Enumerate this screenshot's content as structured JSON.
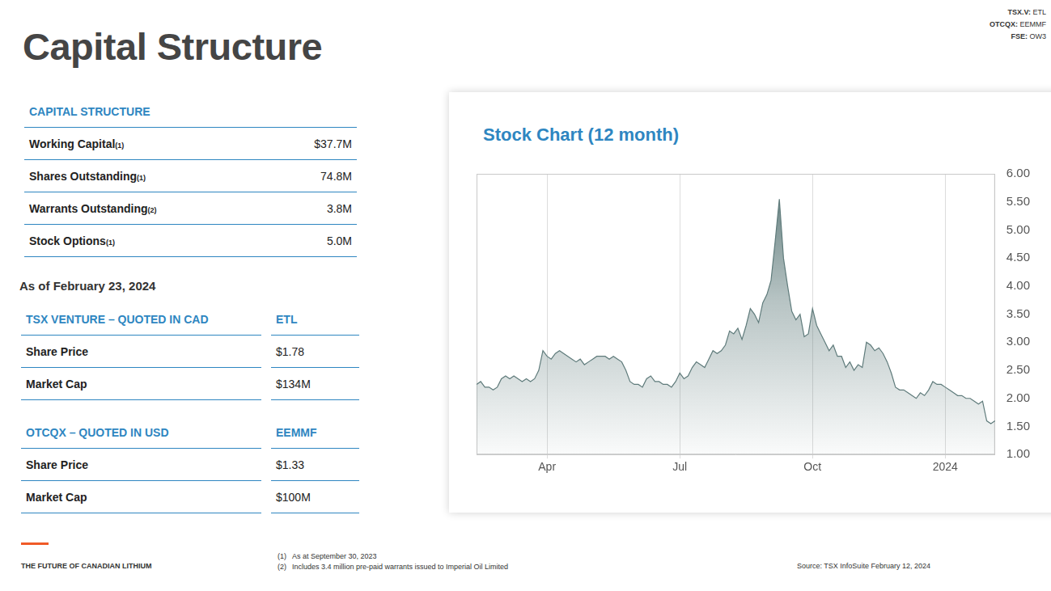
{
  "header": {
    "title": "Capital Structure",
    "tickers": [
      {
        "label": "TSX.V:",
        "value": "ETL"
      },
      {
        "label": "OTCQX:",
        "value": "EEMMF"
      },
      {
        "label": "FSE:",
        "value": "OW3"
      }
    ]
  },
  "capital_structure": {
    "heading": "CAPITAL STRUCTURE",
    "rows": [
      {
        "label": "Working Capital",
        "note": "(1)",
        "value": "$37.7M"
      },
      {
        "label": "Shares Outstanding",
        "note": "(1)",
        "value": "74.8M"
      },
      {
        "label": "Warrants Outstanding",
        "note": "(2)",
        "value": "3.8M"
      },
      {
        "label": "Stock Options",
        "note": "(1)",
        "value": "5.0M"
      }
    ]
  },
  "as_of": "As of February 23, 2024",
  "quotes": [
    {
      "heading": "TSX VENTURE – QUOTED IN CAD",
      "symbol": "ETL",
      "rows": [
        [
          "Share Price",
          "$1.78"
        ],
        [
          "Market Cap",
          "$134M"
        ]
      ]
    },
    {
      "heading": "OTCQX – QUOTED IN USD",
      "symbol": "EEMMF",
      "rows": [
        [
          "Share Price",
          "$1.33"
        ],
        [
          "Market Cap",
          "$100M"
        ]
      ]
    }
  ],
  "chart_data": {
    "type": "area",
    "title": "Stock Chart (12 month)",
    "categories": [
      null,
      null,
      null,
      null,
      null,
      null,
      null,
      null,
      null,
      null,
      null,
      null,
      null,
      null,
      null,
      null,
      null,
      "Apr",
      null,
      null,
      null,
      null,
      null,
      null,
      null,
      null,
      null,
      null,
      null,
      null,
      null,
      null,
      null,
      null,
      null,
      null,
      null,
      null,
      null,
      null,
      null,
      null,
      null,
      null,
      null,
      null,
      null,
      null,
      null,
      "Jul",
      null,
      null,
      null,
      null,
      null,
      null,
      null,
      null,
      null,
      null,
      null,
      null,
      null,
      null,
      null,
      null,
      null,
      null,
      null,
      null,
      null,
      null,
      null,
      null,
      null,
      null,
      null,
      null,
      null,
      null,
      null,
      "Oct",
      null,
      null,
      null,
      null,
      null,
      null,
      null,
      null,
      null,
      null,
      null,
      null,
      null,
      null,
      null,
      null,
      null,
      null,
      null,
      null,
      null,
      null,
      null,
      null,
      null,
      null,
      null,
      null,
      null,
      null,
      null,
      "2024",
      null,
      null,
      null,
      null,
      null,
      null,
      null,
      null,
      null,
      null,
      null,
      null
    ],
    "values": [
      2.25,
      2.3,
      2.2,
      2.2,
      2.15,
      2.2,
      2.35,
      2.4,
      2.35,
      2.4,
      2.35,
      2.3,
      2.35,
      2.3,
      2.35,
      2.5,
      2.85,
      2.75,
      2.7,
      2.8,
      2.85,
      2.8,
      2.75,
      2.7,
      2.65,
      2.7,
      2.6,
      2.65,
      2.7,
      2.75,
      2.75,
      2.75,
      2.7,
      2.75,
      2.7,
      2.65,
      2.5,
      2.3,
      2.25,
      2.25,
      2.2,
      2.35,
      2.4,
      2.3,
      2.3,
      2.25,
      2.25,
      2.2,
      2.3,
      2.45,
      2.35,
      2.4,
      2.55,
      2.65,
      2.6,
      2.55,
      2.7,
      2.85,
      2.8,
      2.85,
      2.95,
      3.2,
      3.15,
      3.25,
      3.05,
      3.3,
      3.6,
      3.5,
      3.35,
      3.7,
      3.85,
      4.1,
      4.8,
      5.55,
      4.5,
      4.0,
      3.55,
      3.4,
      3.5,
      3.1,
      3.15,
      3.6,
      3.3,
      3.15,
      3.0,
      2.85,
      2.95,
      2.75,
      2.75,
      2.55,
      2.65,
      2.5,
      2.6,
      2.55,
      3.0,
      2.95,
      2.85,
      2.9,
      2.8,
      2.65,
      2.45,
      2.2,
      2.15,
      2.15,
      2.1,
      2.05,
      2.0,
      2.1,
      2.05,
      2.15,
      2.3,
      2.25,
      2.25,
      2.2,
      2.15,
      2.1,
      2.05,
      2.05,
      2.0,
      2.0,
      1.95,
      1.9,
      1.95,
      1.6,
      1.55,
      1.6
    ],
    "color": "#5f7b7b",
    "ylim": [
      1,
      6
    ],
    "yticks": [
      {
        "value": 1,
        "label": "1.00"
      },
      {
        "value": 1.5,
        "label": "1.50"
      },
      {
        "value": 2,
        "label": "2.00"
      },
      {
        "value": 2.5,
        "label": "2.50"
      },
      {
        "value": 3,
        "label": "3.00"
      },
      {
        "value": 3.5,
        "label": "3.50"
      },
      {
        "value": 4,
        "label": "4.00"
      },
      {
        "value": 4.5,
        "label": "4.50"
      },
      {
        "value": 5,
        "label": "5.00"
      },
      {
        "value": 5.5,
        "label": "5.50"
      },
      {
        "value": 6,
        "label": "6.00"
      }
    ],
    "grid": true
  },
  "footer": {
    "tagline": "THE FUTURE OF CANADIAN LITHIUM",
    "footnotes": [
      {
        "marker": "(1)",
        "text": "As at September 30, 2023"
      },
      {
        "marker": "(2)",
        "text": "Includes 3.4 million pre-paid warrants issued to Imperial Oil Limited"
      }
    ],
    "source": "Source: TSX InfoSuite February 12, 2024"
  }
}
